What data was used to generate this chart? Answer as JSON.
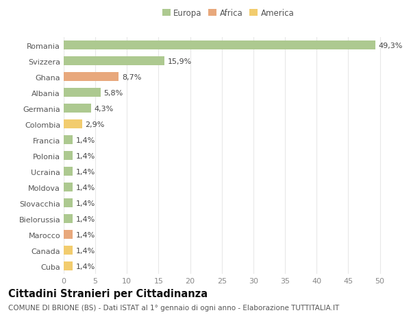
{
  "countries": [
    "Romania",
    "Svizzera",
    "Ghana",
    "Albania",
    "Germania",
    "Colombia",
    "Francia",
    "Polonia",
    "Ucraina",
    "Moldova",
    "Slovacchia",
    "Bielorussia",
    "Marocco",
    "Canada",
    "Cuba"
  ],
  "values": [
    49.3,
    15.9,
    8.7,
    5.8,
    4.3,
    2.9,
    1.4,
    1.4,
    1.4,
    1.4,
    1.4,
    1.4,
    1.4,
    1.4,
    1.4
  ],
  "labels": [
    "49,3%",
    "15,9%",
    "8,7%",
    "5,8%",
    "4,3%",
    "2,9%",
    "1,4%",
    "1,4%",
    "1,4%",
    "1,4%",
    "1,4%",
    "1,4%",
    "1,4%",
    "1,4%",
    "1,4%"
  ],
  "continents": [
    "Europa",
    "Europa",
    "Africa",
    "Europa",
    "Europa",
    "America",
    "Europa",
    "Europa",
    "Europa",
    "Europa",
    "Europa",
    "Europa",
    "Africa",
    "America",
    "America"
  ],
  "colors": {
    "Europa": "#adc990",
    "Africa": "#e8a87c",
    "America": "#f2cc6e"
  },
  "legend_labels": [
    "Europa",
    "Africa",
    "America"
  ],
  "legend_colors": [
    "#adc990",
    "#e8a87c",
    "#f2cc6e"
  ],
  "title": "Cittadini Stranieri per Cittadinanza",
  "subtitle": "COMUNE DI BRIONE (BS) - Dati ISTAT al 1° gennaio di ogni anno - Elaborazione TUTTITALIA.IT",
  "xlim": [
    0,
    52
  ],
  "xticks": [
    0,
    5,
    10,
    15,
    20,
    25,
    30,
    35,
    40,
    45,
    50
  ],
  "bg_color": "#ffffff",
  "grid_color": "#e8e8e8",
  "bar_height": 0.55,
  "label_fontsize": 8,
  "tick_fontsize": 8,
  "ytick_fontsize": 8,
  "title_fontsize": 10.5,
  "subtitle_fontsize": 7.5,
  "legend_fontsize": 8.5
}
